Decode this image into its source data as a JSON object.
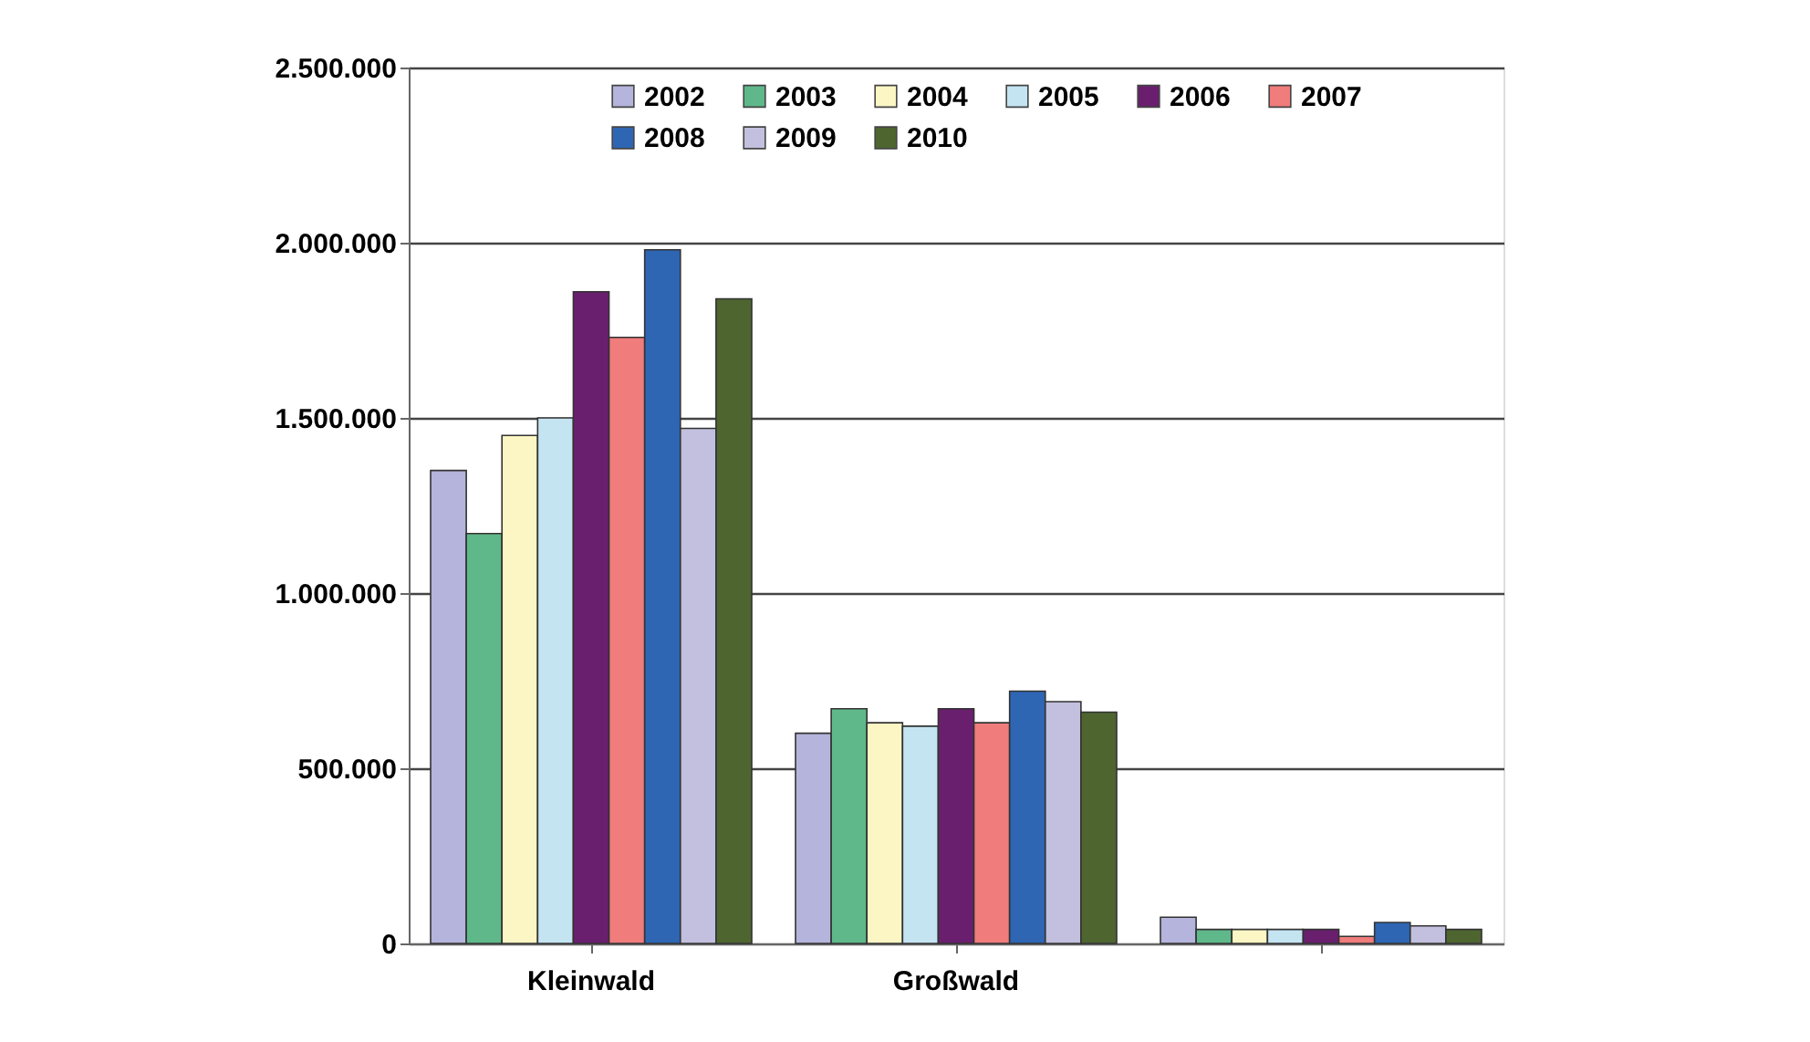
{
  "chart_data": {
    "type": "bar",
    "categories": [
      "Kleinwald",
      "Großwald",
      null
    ],
    "series": [
      {
        "name": "2002",
        "color": "#b4b4dc",
        "values": [
          1350000,
          600000,
          75000
        ]
      },
      {
        "name": "2003",
        "color": "#5fb88a",
        "values": [
          1170000,
          670000,
          40000
        ]
      },
      {
        "name": "2004",
        "color": "#fbf6c4",
        "values": [
          1450000,
          630000,
          40000
        ]
      },
      {
        "name": "2005",
        "color": "#c4e4f2",
        "values": [
          1500000,
          620000,
          40000
        ]
      },
      {
        "name": "2006",
        "color": "#6a1f6e",
        "values": [
          1860000,
          670000,
          40000
        ]
      },
      {
        "name": "2007",
        "color": "#f07c7c",
        "values": [
          1730000,
          630000,
          20000
        ]
      },
      {
        "name": "2008",
        "color": "#2e66b4",
        "values": [
          1980000,
          720000,
          60000
        ]
      },
      {
        "name": "2009",
        "color": "#c2c0de",
        "values": [
          1470000,
          690000,
          50000
        ]
      },
      {
        "name": "2010",
        "color": "#4e6530",
        "values": [
          1840000,
          660000,
          40000
        ]
      }
    ],
    "ylim": [
      0,
      2500000
    ],
    "yticks": [
      {
        "value": 0,
        "label": "0"
      },
      {
        "value": 500000,
        "label": "500.000"
      },
      {
        "value": 1000000,
        "label": "1.000.000"
      },
      {
        "value": 1500000,
        "label": "1.500.000"
      },
      {
        "value": 2000000,
        "label": "2.000.000"
      },
      {
        "value": 2500000,
        "label": "2.500.000"
      }
    ],
    "grid": "y",
    "legend": "top"
  }
}
